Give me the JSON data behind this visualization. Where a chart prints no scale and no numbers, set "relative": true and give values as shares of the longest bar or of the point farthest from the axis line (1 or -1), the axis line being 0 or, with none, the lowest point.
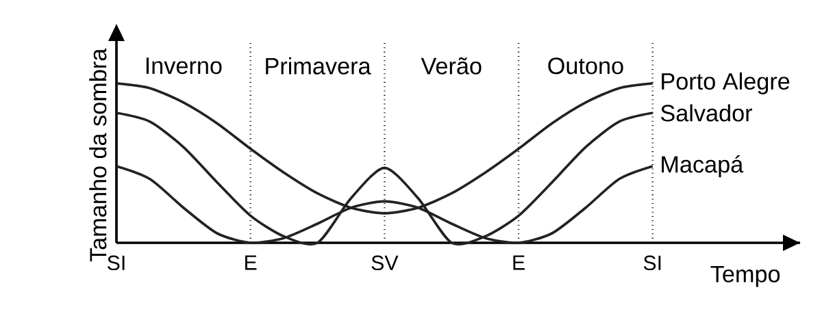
{
  "chart_data": {
    "type": "line",
    "relative": true,
    "xlabel": "Tempo",
    "ylabel": "Tamanho da sombra",
    "categories": [
      "SI",
      null,
      null,
      null,
      "E",
      null,
      null,
      null,
      "SV",
      null,
      null,
      null,
      "E",
      null,
      null,
      null,
      "SI"
    ],
    "annotations": [
      "Inverno",
      "Primavera",
      "Verão",
      "Outono"
    ],
    "grid": "x",
    "marker": "none",
    "line_style": "solid",
    "legend": false,
    "series": [
      {
        "name": "Porto Alegre",
        "color": "#222222",
        "values": [
          1,
          0.97,
          0.88,
          0.75,
          0.59,
          0.44,
          0.31,
          0.22,
          0.185,
          0.22,
          0.31,
          0.44,
          0.59,
          0.75,
          0.88,
          0.97,
          1
        ]
      },
      {
        "name": "Salvador",
        "color": "#222222",
        "values": [
          0.815,
          0.76,
          0.6,
          0.38,
          0.17,
          0.04,
          0,
          0.28,
          0.47,
          0.28,
          0,
          0.04,
          0.17,
          0.38,
          0.6,
          0.76,
          0.815
        ]
      },
      {
        "name": "Macapá",
        "color": "#222222",
        "values": [
          0.48,
          0.4,
          0.22,
          0.06,
          0,
          0.03,
          0.12,
          0.22,
          0.26,
          0.22,
          0.12,
          0.03,
          0,
          0.06,
          0.22,
          0.4,
          0.48
        ]
      }
    ]
  }
}
